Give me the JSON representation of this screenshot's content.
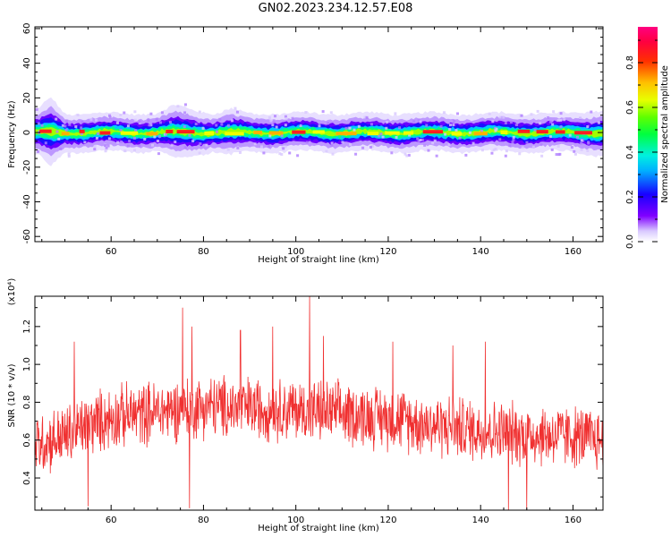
{
  "title": "GN02.2023.234.12.57.E08",
  "colors": {
    "snr_line": "#f03030",
    "spectrogram_background": "#ffffff",
    "axis": "#000000"
  },
  "chart_data": [
    {
      "type": "heatmap",
      "title": "GN02.2023.234.12.57.E08",
      "xlabel": "Height of straight line (km)",
      "ylabel": "Frequency (Hz)",
      "xlim": [
        43.5,
        166.5
      ],
      "ylim": [
        -63,
        61
      ],
      "x_ticks": [
        60,
        80,
        100,
        120,
        140,
        160
      ],
      "y_ticks": [
        -60,
        -40,
        -20,
        0,
        20,
        40,
        60
      ],
      "colorbar": {
        "label": "Normalized spectral amplitude",
        "range": [
          0.0,
          0.96
        ],
        "ticks": [
          0.0,
          0.2,
          0.4,
          0.6,
          0.8
        ],
        "colormap": "rainbow (white - purple - blue - cyan - green - yellow - orange - red - magenta)"
      },
      "description_of_content": "Narrow band of high amplitude centered near 0 Hz across the full height range; signal spread roughly -8 to +8 Hz, slightly wider near 46 km and 76 km",
      "band_center_hz": 0,
      "band_halfwidth_hz": [
        {
          "x": 45,
          "v": 7
        },
        {
          "x": 47,
          "v": 9
        },
        {
          "x": 50,
          "v": 5
        },
        {
          "x": 55,
          "v": 5
        },
        {
          "x": 60,
          "v": 5
        },
        {
          "x": 65,
          "v": 5
        },
        {
          "x": 70,
          "v": 5
        },
        {
          "x": 74,
          "v": 7
        },
        {
          "x": 78,
          "v": 6
        },
        {
          "x": 82,
          "v": 5
        },
        {
          "x": 86,
          "v": 6
        },
        {
          "x": 90,
          "v": 5
        },
        {
          "x": 100,
          "v": 5
        },
        {
          "x": 110,
          "v": 5
        },
        {
          "x": 120,
          "v": 5
        },
        {
          "x": 130,
          "v": 5
        },
        {
          "x": 140,
          "v": 5
        },
        {
          "x": 150,
          "v": 5
        },
        {
          "x": 160,
          "v": 5
        },
        {
          "x": 166,
          "v": 6
        }
      ]
    },
    {
      "type": "line",
      "xlabel": "Height of straight line (km)",
      "ylabel": "SNR (10 * v/v)",
      "y_scale_label": "(x10⁴)",
      "xlim": [
        43.5,
        166.5
      ],
      "ylim": [
        0.23,
        1.36
      ],
      "x_ticks": [
        60,
        80,
        100,
        120,
        140,
        160
      ],
      "y_ticks": [
        0.4,
        0.6,
        0.8,
        1.0,
        1.2
      ],
      "series": [
        {
          "values_trend": [
            {
              "x": 44,
              "y": 0.58
            },
            {
              "x": 50,
              "y": 0.62
            },
            {
              "x": 55,
              "y": 0.68
            },
            {
              "x": 60,
              "y": 0.72
            },
            {
              "x": 70,
              "y": 0.75
            },
            {
              "x": 80,
              "y": 0.78
            },
            {
              "x": 90,
              "y": 0.77
            },
            {
              "x": 100,
              "y": 0.76
            },
            {
              "x": 110,
              "y": 0.74
            },
            {
              "x": 120,
              "y": 0.72
            },
            {
              "x": 130,
              "y": 0.68
            },
            {
              "x": 140,
              "y": 0.65
            },
            {
              "x": 150,
              "y": 0.63
            },
            {
              "x": 160,
              "y": 0.62
            },
            {
              "x": 166,
              "y": 0.6
            }
          ],
          "noise_amplitude": 0.14,
          "notable_peaks": [
            {
              "x": 52,
              "y": 1.12
            },
            {
              "x": 75.5,
              "y": 1.3
            },
            {
              "x": 77.5,
              "y": 1.2
            },
            {
              "x": 88,
              "y": 1.18
            },
            {
              "x": 95,
              "y": 1.2
            },
            {
              "x": 103,
              "y": 1.36
            },
            {
              "x": 106,
              "y": 1.15
            },
            {
              "x": 121,
              "y": 1.12
            },
            {
              "x": 134,
              "y": 1.1
            },
            {
              "x": 141,
              "y": 1.12
            },
            {
              "x": 150,
              "y": 1.09
            }
          ],
          "notable_troughs": [
            {
              "x": 55,
              "y": 0.25
            },
            {
              "x": 77,
              "y": 0.24
            },
            {
              "x": 146,
              "y": 0.22
            },
            {
              "x": 150,
              "y": 0.23
            }
          ]
        }
      ]
    }
  ]
}
